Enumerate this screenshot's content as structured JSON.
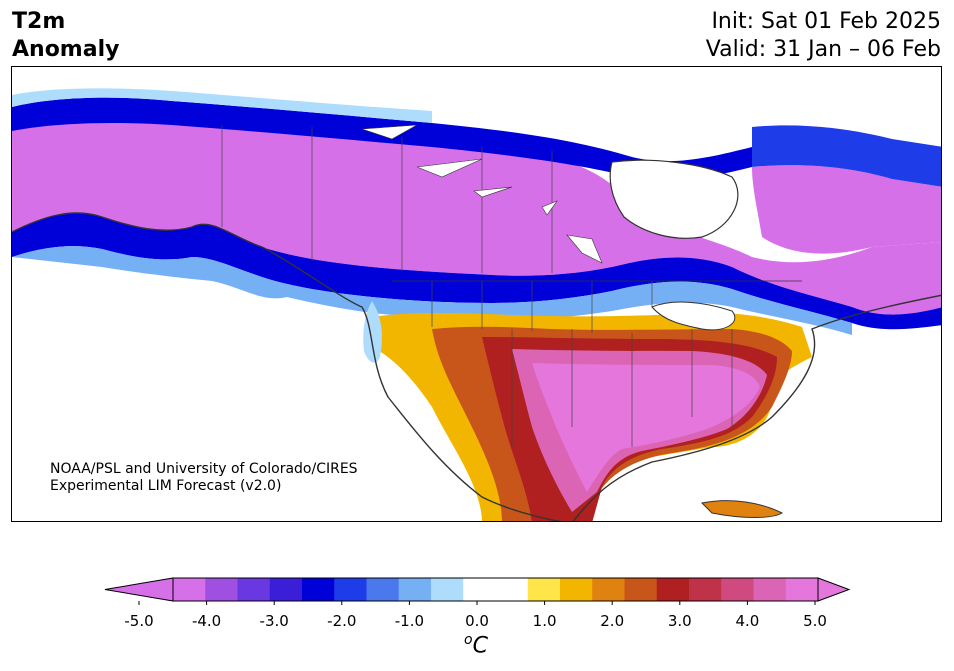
{
  "header": {
    "title_line1": "T2m",
    "title_line2": "Anomaly",
    "init": "Init: Sat 01 Feb 2025",
    "valid": "Valid: 31 Jan – 06 Feb"
  },
  "credit": {
    "line1": "NOAA/PSL and University of Colorado/CIRES",
    "line2": "Experimental LIM Forecast (v2.0)"
  },
  "colorbar": {
    "units_base": "C",
    "units_sup": "o",
    "ticks": [
      "-5.0",
      "-4.0",
      "-3.0",
      "-2.0",
      "-1.0",
      "0.0",
      "1.0",
      "2.0",
      "3.0",
      "4.0",
      "5.0"
    ],
    "colors": [
      "#d670e8",
      "#a050e0",
      "#6a38e0",
      "#3a1ed8",
      "#0000d8",
      "#1e3ce8",
      "#4c78ee",
      "#76b0f4",
      "#aedcfc",
      "#ffffff",
      "#ffffff",
      "#ffe44a",
      "#f2b600",
      "#e08210",
      "#c8561a",
      "#b02020",
      "#c03248",
      "#d04a80",
      "#dc64b4",
      "#e476dc"
    ],
    "under_color": "#d670e8",
    "over_color": "#e476dc"
  }
}
